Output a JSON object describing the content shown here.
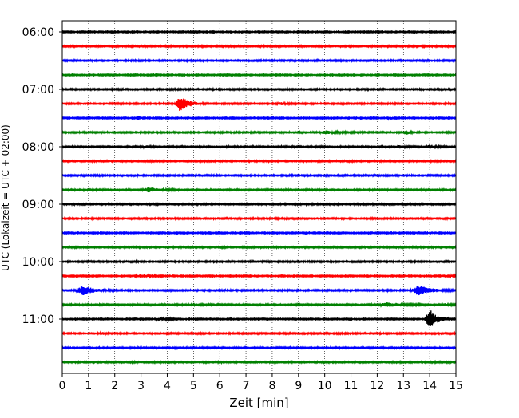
{
  "chart_data": {
    "type": "line",
    "xlabel": "Zeit  [min]",
    "ylabel": "UTC (Lokalzeit = UTC + 02:00)",
    "xlim": [
      0,
      15
    ],
    "x_ticks": [
      "0",
      "1",
      "2",
      "3",
      "4",
      "5",
      "6",
      "7",
      "8",
      "9",
      "10",
      "11",
      "12",
      "13",
      "14",
      "15"
    ],
    "y_ticks": [
      {
        "label": "06:00",
        "row": 0
      },
      {
        "label": "07:00",
        "row": 4
      },
      {
        "label": "08:00",
        "row": 8
      },
      {
        "label": "09:00",
        "row": 12
      },
      {
        "label": "10:00",
        "row": 16
      },
      {
        "label": "11:00",
        "row": 20
      }
    ],
    "grid": "vertical dotted at each minute",
    "colors": [
      "#000000",
      "#ff0000",
      "#0000ff",
      "#008000"
    ],
    "noise_amplitude_rows": 0.045,
    "traces": [
      {
        "start": "06:00",
        "events": []
      },
      {
        "start": "06:15",
        "events": []
      },
      {
        "start": "06:30",
        "events": []
      },
      {
        "start": "06:45",
        "events": []
      },
      {
        "start": "07:00",
        "events": []
      },
      {
        "start": "07:15",
        "events": [
          {
            "t": 4.5,
            "amp": 0.55,
            "dur": 0.9
          },
          {
            "t": 8.3,
            "amp": 0.08,
            "dur": 0.8
          }
        ]
      },
      {
        "start": "07:30",
        "events": [
          {
            "t": 2.9,
            "amp": 0.15,
            "dur": 0.3
          },
          {
            "t": 12.5,
            "amp": 0.1,
            "dur": 0.3
          }
        ]
      },
      {
        "start": "07:45",
        "events": [
          {
            "t": 10.0,
            "amp": 0.1,
            "dur": 1.0
          },
          {
            "t": 13.1,
            "amp": 0.15,
            "dur": 0.3
          }
        ]
      },
      {
        "start": "08:00",
        "events": [
          {
            "t": 3.2,
            "amp": 0.07,
            "dur": 0.5
          },
          {
            "t": 12.8,
            "amp": 0.12,
            "dur": 0.6
          },
          {
            "t": 14.0,
            "amp": 0.12,
            "dur": 0.6
          }
        ]
      },
      {
        "start": "08:15",
        "events": []
      },
      {
        "start": "08:30",
        "events": []
      },
      {
        "start": "08:45",
        "events": [
          {
            "t": 3.3,
            "amp": 0.14,
            "dur": 1.2
          }
        ]
      },
      {
        "start": "09:00",
        "events": []
      },
      {
        "start": "09:15",
        "events": []
      },
      {
        "start": "09:30",
        "events": []
      },
      {
        "start": "09:45",
        "events": [
          {
            "t": 6.0,
            "amp": 0.08,
            "dur": 0.3
          }
        ]
      },
      {
        "start": "10:00",
        "events": []
      },
      {
        "start": "10:15",
        "events": [
          {
            "t": 3.0,
            "amp": 0.1,
            "dur": 1.0
          },
          {
            "t": 14.6,
            "amp": 0.08,
            "dur": 1.0
          }
        ]
      },
      {
        "start": "10:30",
        "events": [
          {
            "t": 0.8,
            "amp": 0.3,
            "dur": 1.2
          },
          {
            "t": 13.6,
            "amp": 0.35,
            "dur": 1.3
          }
        ]
      },
      {
        "start": "10:45",
        "events": [
          {
            "t": 12.4,
            "amp": 0.12,
            "dur": 1.4
          },
          {
            "t": 14.6,
            "amp": 0.06,
            "dur": 0.6
          }
        ]
      },
      {
        "start": "11:00",
        "events": [
          {
            "t": 14.0,
            "amp": 0.65,
            "dur": 0.8
          },
          {
            "t": 3.7,
            "amp": 0.06,
            "dur": 0.8
          }
        ]
      },
      {
        "start": "11:15",
        "events": [
          {
            "t": 1.5,
            "amp": 0.1,
            "dur": 0.3
          }
        ]
      },
      {
        "start": "11:30",
        "events": []
      },
      {
        "start": "11:45",
        "events": []
      }
    ]
  }
}
